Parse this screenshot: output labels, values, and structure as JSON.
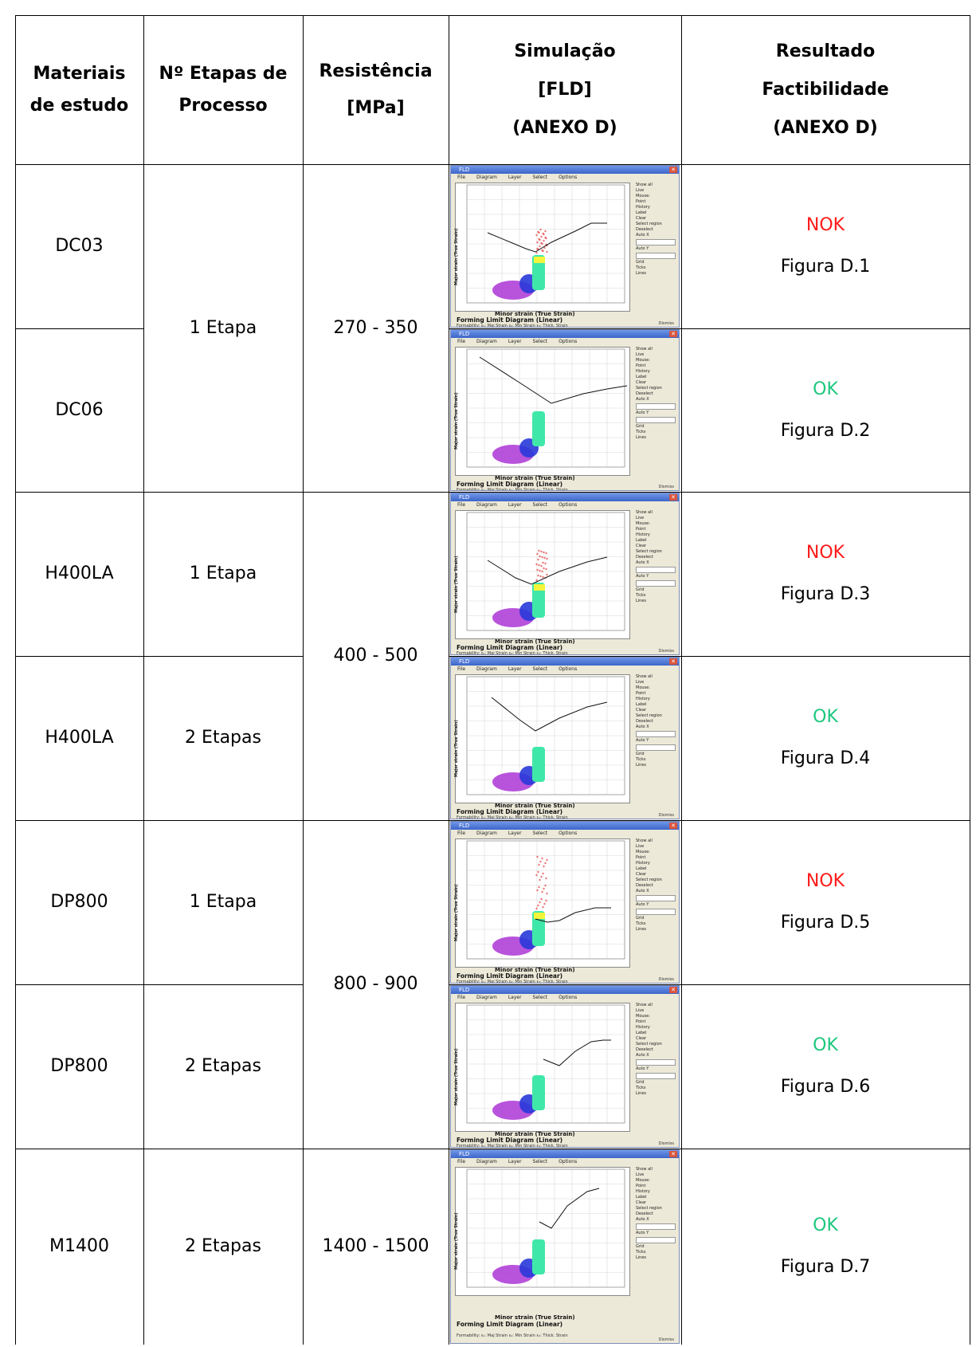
{
  "headers": {
    "materials": [
      "Materiais",
      "de estudo"
    ],
    "stages": [
      "Nº Etapas de",
      "Processo"
    ],
    "resistance": [
      "Resistência",
      "[MPa]"
    ],
    "simulation": [
      "Simulação",
      "[FLD]",
      "(ANEXO D)"
    ],
    "result": [
      "Resultado",
      "Factibilidade",
      "(ANEXO D)"
    ]
  },
  "rows": [
    {
      "material": "DC03",
      "status": "NOK",
      "figure": "Figura D.1"
    },
    {
      "material": "DC06",
      "status": "OK",
      "figure": "Figura D.2"
    },
    {
      "material": "H400LA",
      "status": "NOK",
      "figure": "Figura D.3"
    },
    {
      "material": "H400LA",
      "status": "OK",
      "figure": "Figura D.4"
    },
    {
      "material": "DP800",
      "status": "NOK",
      "figure": "Figura D.5"
    },
    {
      "material": "DP800",
      "status": "OK",
      "figure": "Figura D.6"
    },
    {
      "material": "M1400",
      "status": "OK",
      "figure": "Figura D.7"
    }
  ],
  "stages": [
    {
      "label": "1 Etapa"
    },
    {
      "label": "1 Etapa"
    },
    {
      "label": "2 Etapas"
    },
    {
      "label": "1 Etapa"
    },
    {
      "label": "2 Etapas"
    },
    {
      "label": "2 Etapas"
    }
  ],
  "resistance": [
    {
      "label": "270 - 350"
    },
    {
      "label": "400 - 500"
    },
    {
      "label": "800 - 900"
    },
    {
      "label": "1400 - 1500"
    }
  ],
  "fld_window": {
    "title": "FLD",
    "menu": [
      "File",
      "Diagram",
      "Layer",
      "Select",
      "Options"
    ],
    "x_label": "Minor strain (True Strain)",
    "y_label": "Major strain (True Strain)",
    "diagram_title": "Forming Limit Diagram (Linear)",
    "bottom": "Formability:  ε₁: Maj Strain   ε₂: Min Strain   ε₃: Thick. Strain",
    "dismiss": "Dismiss",
    "side": [
      "Show all",
      "Live",
      "Mouse:",
      "Point",
      "History",
      "Label",
      "Clear",
      "Select region",
      "Deselect",
      "Auto X",
      "Auto Y",
      "Grid",
      "Ticks",
      "Lines"
    ]
  },
  "colors": {
    "nok": "#ff1a1a",
    "ok": "#1dc77f",
    "fld_red": "#e02020",
    "fld_yellow": "#f4f43a",
    "fld_green": "#3fe8a8",
    "fld_blue": "#2838d8",
    "fld_purple": "#b040d8"
  }
}
